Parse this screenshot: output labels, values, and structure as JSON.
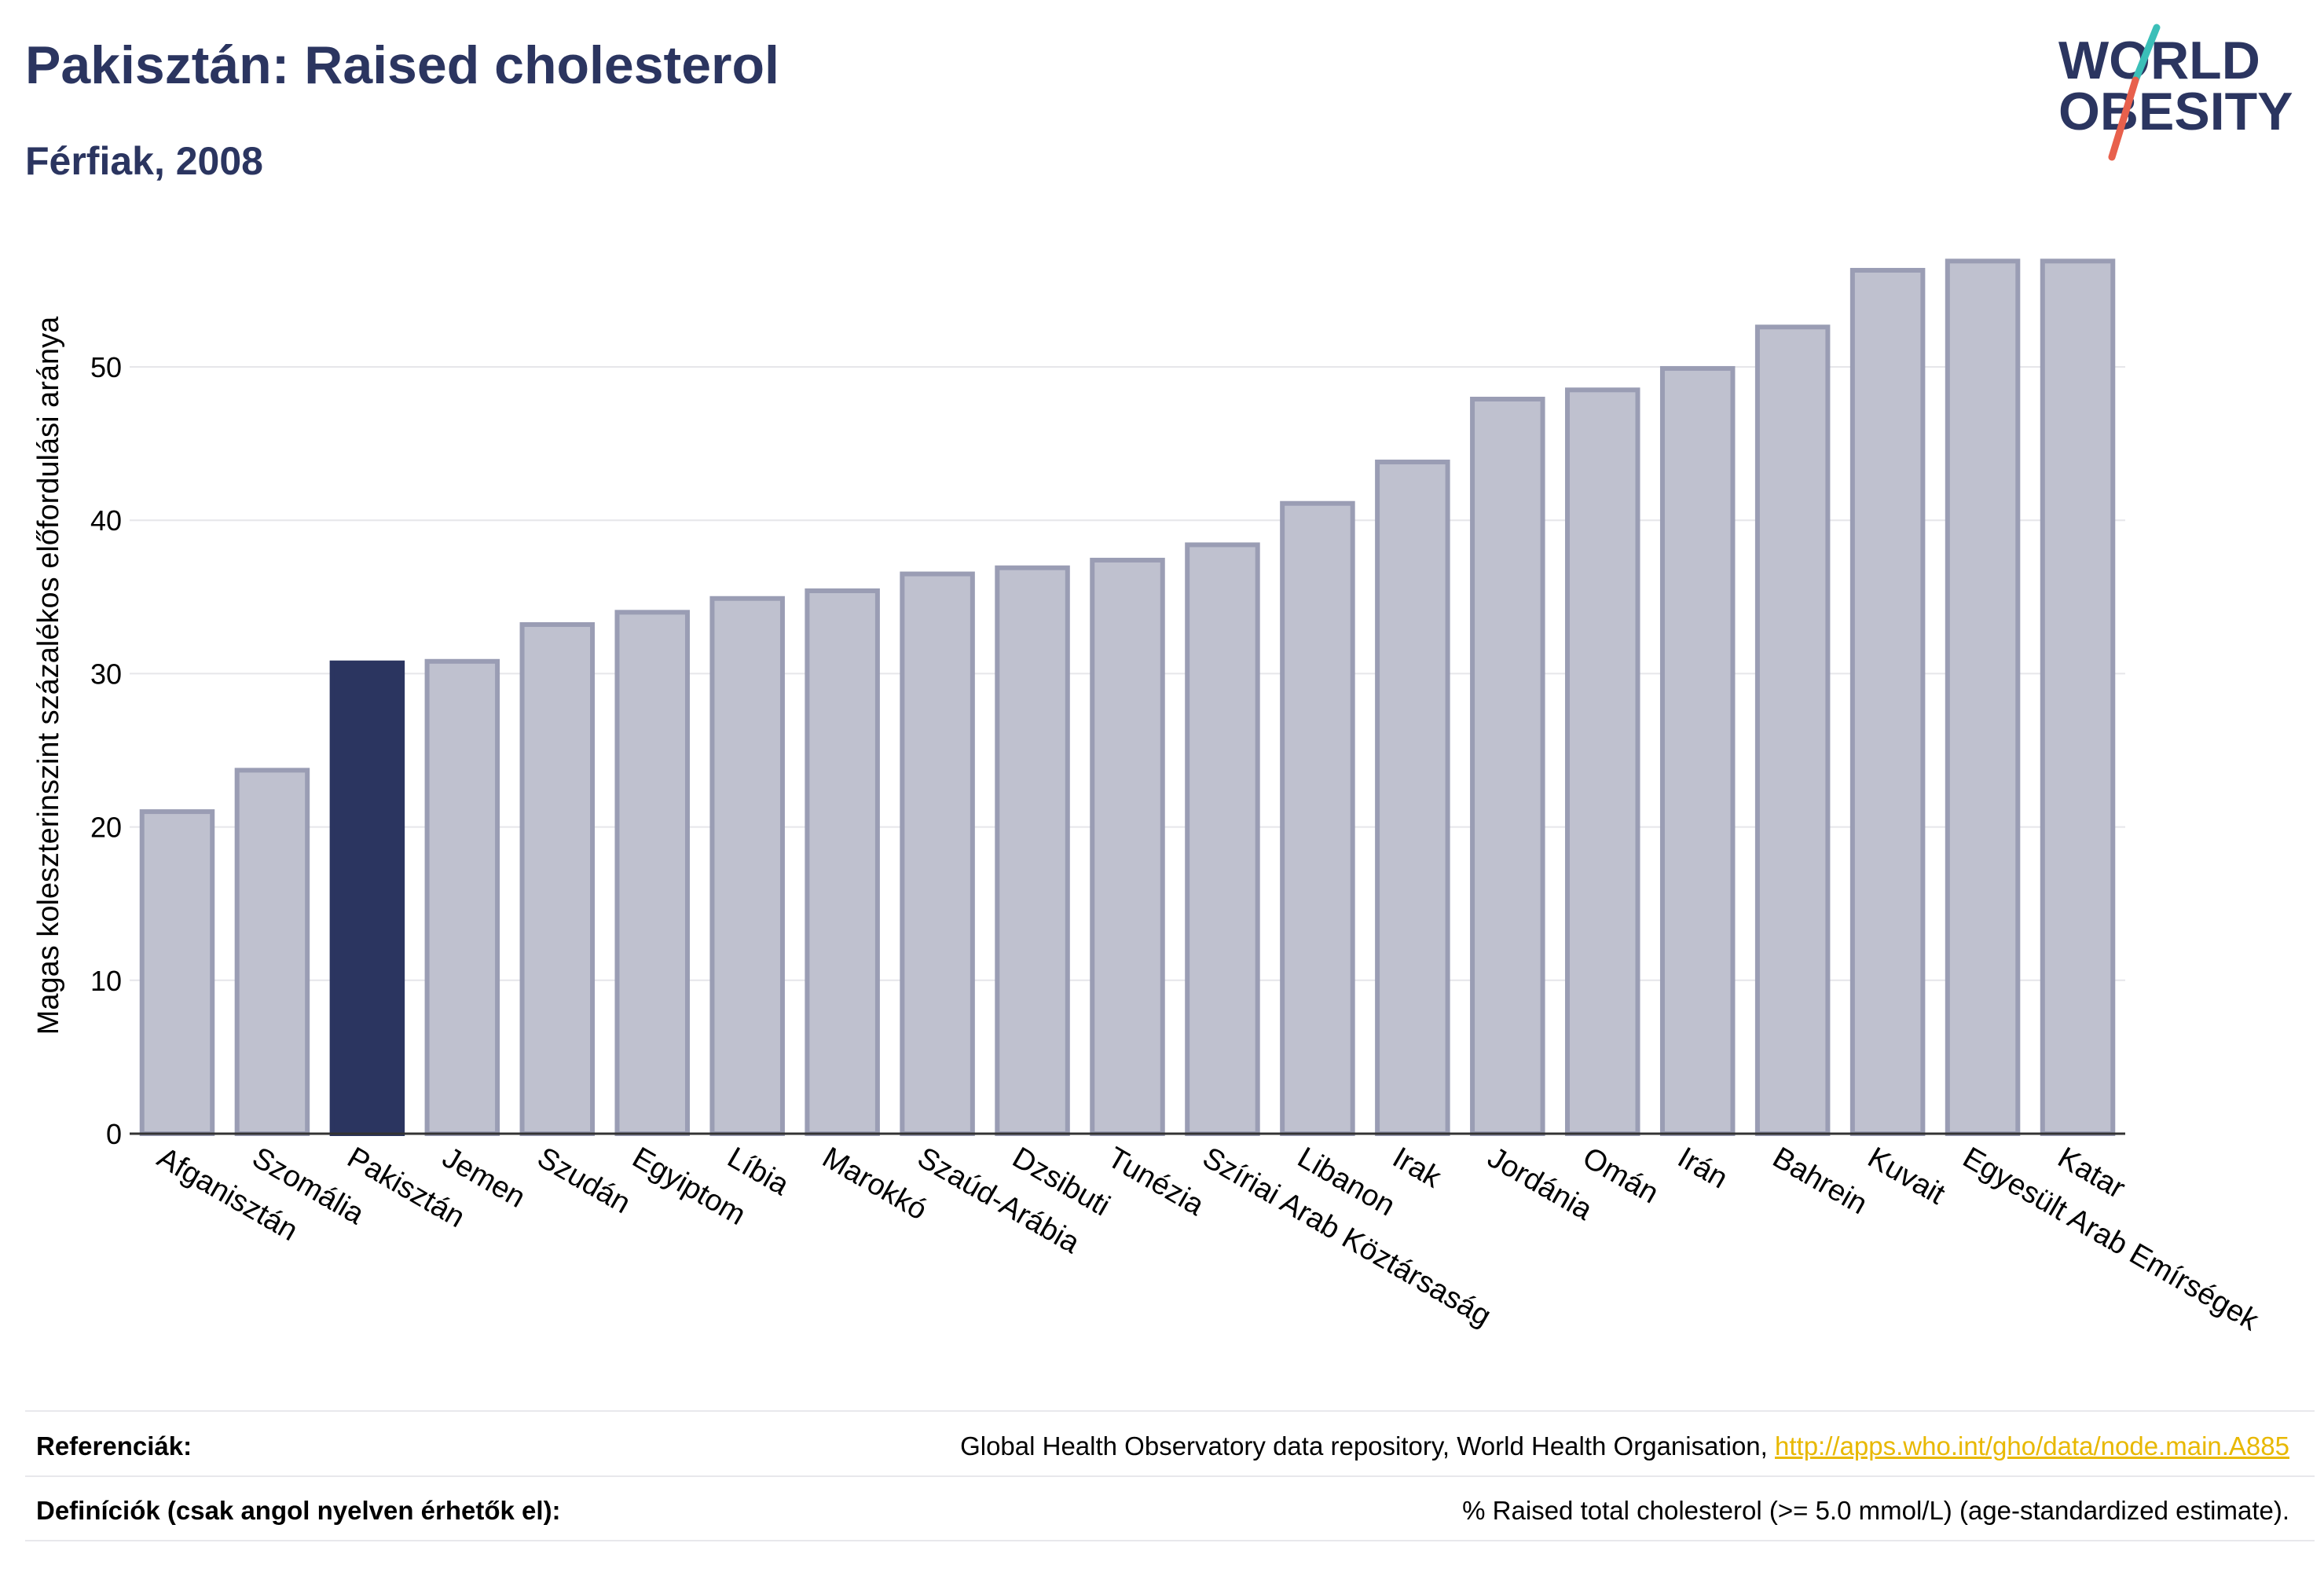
{
  "header": {
    "title": "Pakisztán: Raised cholesterol",
    "subtitle": "Férfiak, 2008"
  },
  "logo": {
    "line1": "WORLD",
    "line2": "OBESITY",
    "colors": {
      "text": "#2b3560",
      "slash_top": "#3bbfb8",
      "slash_bottom": "#e8604c"
    }
  },
  "chart_data": {
    "type": "bar",
    "title": "Pakisztán: Raised cholesterol",
    "subtitle": "Férfiak, 2008",
    "xlabel": "",
    "ylabel": "Magas koleszterinszint százalékos előfordulási aránya",
    "ylim": [
      0,
      60
    ],
    "yticks": [
      0,
      10,
      20,
      30,
      40,
      50
    ],
    "grid": true,
    "highlight": "Pakisztán",
    "colors": {
      "bar": "#bfc1cf",
      "bar_border": "#9a9db4",
      "highlight": "#2b3560",
      "grid": "#e6e6ea"
    },
    "categories": [
      "Afganisztán",
      "Szomália",
      "Pakisztán",
      "Jemen",
      "Szudán",
      "Egyiptom",
      "Líbia",
      "Marokkó",
      "Szaúd-Arábia",
      "Dzsibuti",
      "Tunézia",
      "Szíriai Arab Köztársaság",
      "Libanon",
      "Irak",
      "Jordánia",
      "Omán",
      "Irán",
      "Bahrein",
      "Kuvait",
      "Egyesült Arab Emírségek",
      "Katar"
    ],
    "values": [
      21.0,
      23.7,
      30.7,
      30.8,
      33.2,
      34.0,
      34.9,
      35.4,
      36.5,
      36.9,
      37.4,
      38.4,
      41.1,
      43.8,
      47.9,
      48.5,
      49.9,
      52.6,
      56.3,
      56.9,
      56.9
    ]
  },
  "footer": {
    "references_label": "Referenciák:",
    "references_text": "Global Health Observatory data repository, World Health Organisation,",
    "references_link": "http://apps.who.int/gho/data/node.main.A885",
    "definitions_label": "Definíciók (csak angol nyelven érhetők el):",
    "definitions_text": "% Raised total cholesterol (>= 5.0 mmol/L) (age-standardized estimate)."
  }
}
